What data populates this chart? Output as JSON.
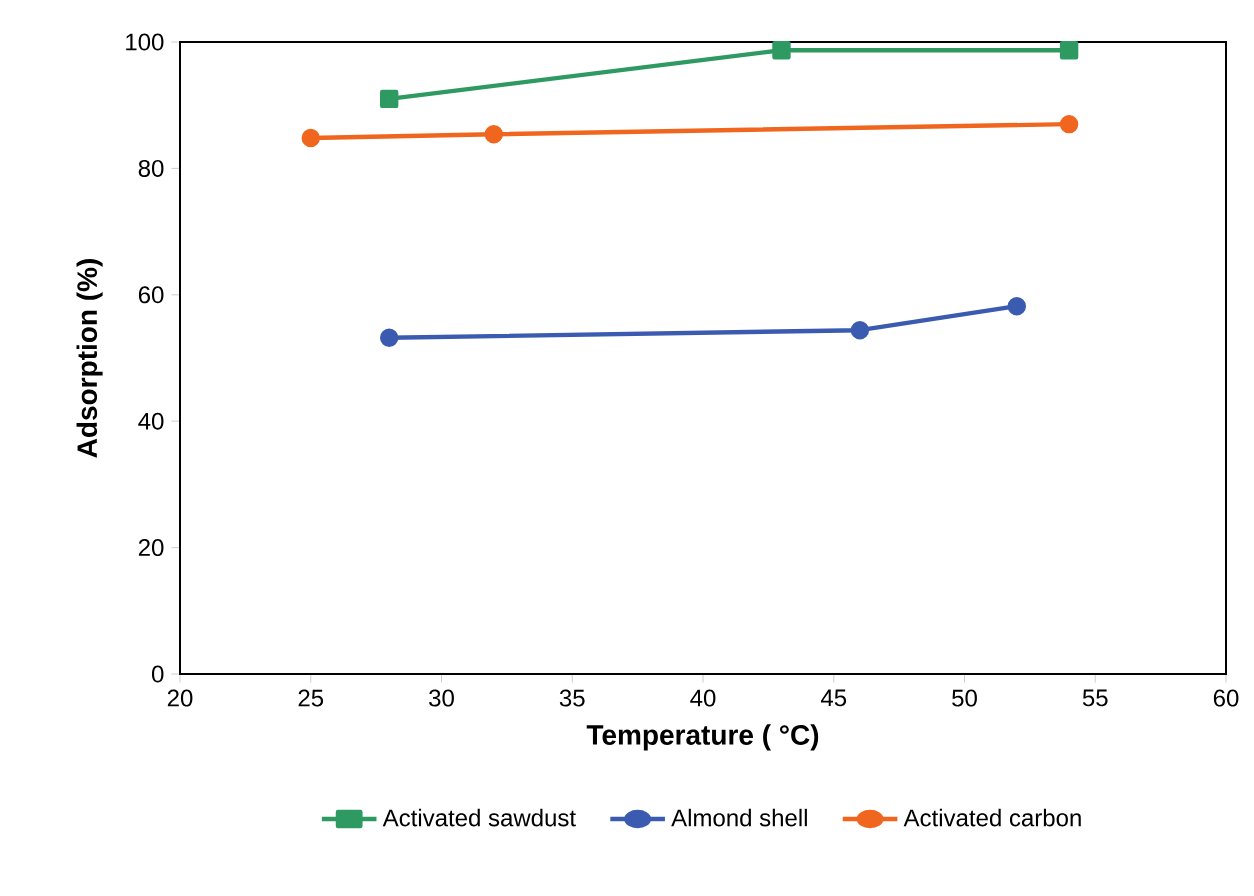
{
  "chart_data": {
    "type": "line",
    "xlabel": "Temperature ( °C)",
    "ylabel": "Adsorption (%)",
    "xlim": [
      20,
      60
    ],
    "xticks": [
      20,
      25,
      30,
      35,
      40,
      45,
      50,
      55,
      60
    ],
    "ylim": [
      0,
      100
    ],
    "yticks": [
      0,
      20,
      40,
      60,
      80,
      100
    ],
    "grid": false,
    "legend": "bottom",
    "line_style": "solid",
    "series": [
      {
        "name": "Activated sawdust",
        "color": "#2e9a62",
        "marker": "square",
        "x": [
          28,
          43,
          54
        ],
        "values": [
          91,
          98.7,
          98.7
        ]
      },
      {
        "name": "Almond shell",
        "color": "#3a5bb0",
        "marker": "circle",
        "x": [
          28,
          46,
          52
        ],
        "values": [
          53.2,
          54.4,
          58.2
        ]
      },
      {
        "name": "Activated carbon",
        "color": "#f0661f",
        "marker": "circle",
        "x": [
          25,
          32,
          54
        ],
        "values": [
          84.8,
          85.4,
          87
        ]
      }
    ]
  }
}
